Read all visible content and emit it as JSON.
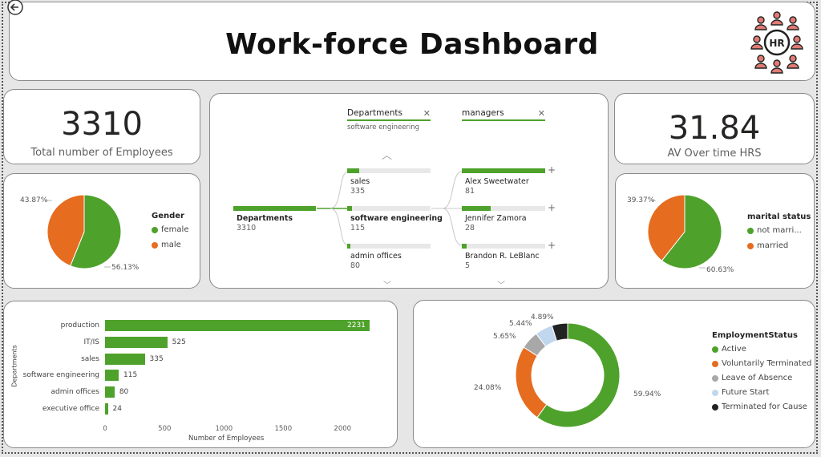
{
  "header": {
    "title": "Work-force Dashboard",
    "back_icon": "back-arrow-icon",
    "logo_text": "HR"
  },
  "kpis": {
    "total_employees": {
      "value": "3310",
      "label": "Total number of Employees"
    },
    "overtime": {
      "value": "31.84",
      "label": "AV Over time HRS"
    }
  },
  "gender": {
    "legend_title": "Gender",
    "items": [
      {
        "label": "female",
        "pct": "56.13%",
        "color": "#4ea22b"
      },
      {
        "label": "male",
        "pct": "43.87%",
        "color": "#e66c1f"
      }
    ]
  },
  "marital": {
    "legend_title": "marital status",
    "items": [
      {
        "label": "not marri...",
        "pct": "60.63%",
        "color": "#4ea22b"
      },
      {
        "label": "married",
        "pct": "39.37%",
        "color": "#e66c1f"
      }
    ]
  },
  "tree": {
    "filters": [
      {
        "label": "Departments",
        "selected": "software engineering"
      },
      {
        "label": "managers",
        "selected": ""
      }
    ],
    "root": {
      "label": "Departments",
      "value": "3310"
    },
    "level1": [
      {
        "label": "sales",
        "value": "335",
        "fill": 0.15
      },
      {
        "label": "software engineering",
        "value": "115",
        "fill": 0.05,
        "selected": true
      },
      {
        "label": "admin offices",
        "value": "80",
        "fill": 0.035
      }
    ],
    "level2": [
      {
        "label": "Alex Sweetwater",
        "value": "81",
        "fill": 1.0
      },
      {
        "label": "Jennifer Zamora",
        "value": "28",
        "fill": 0.35
      },
      {
        "label": "Brandon R. LeBlanc",
        "value": "5",
        "fill": 0.06
      }
    ]
  },
  "dept_chart": {
    "ylabel": "Departments",
    "xlabel": "Number of Employees",
    "ticks": [
      "0",
      "500",
      "1000",
      "1500",
      "2000"
    ],
    "categories": [
      "production",
      "IT/IS",
      "sales",
      "software engineering",
      "admin offices",
      "executive office"
    ],
    "values": [
      2231,
      525,
      335,
      115,
      80,
      24
    ],
    "value_labels": [
      "2231",
      "525",
      "335",
      "115",
      "80",
      "24"
    ]
  },
  "employment": {
    "legend_title": "EmploymentStatus",
    "items": [
      {
        "label": "Active",
        "pct": "59.94%",
        "value": 59.94,
        "color": "#4ea22b"
      },
      {
        "label": "Voluntarily Terminated",
        "pct": "24.08%",
        "value": 24.08,
        "color": "#e66c1f"
      },
      {
        "label": "Leave of Absence",
        "pct": "5.65%",
        "value": 5.65,
        "color": "#a8a8a8"
      },
      {
        "label": "Future Start",
        "pct": "5.44%",
        "value": 5.44,
        "color": "#c0d7ee"
      },
      {
        "label": "Terminated for Cause",
        "pct": "4.89%",
        "value": 4.89,
        "color": "#222222"
      }
    ]
  },
  "chart_data": [
    {
      "type": "pie",
      "title": "Gender",
      "categories": [
        "female",
        "male"
      ],
      "values": [
        56.13,
        43.87
      ]
    },
    {
      "type": "pie",
      "title": "marital status",
      "categories": [
        "not marri...",
        "married"
      ],
      "values": [
        60.63,
        39.37
      ]
    },
    {
      "type": "bar",
      "categories": [
        "production",
        "IT/IS",
        "sales",
        "software engineering",
        "admin offices",
        "executive office"
      ],
      "values": [
        2231,
        525,
        335,
        115,
        80,
        24
      ],
      "xlabel": "Number of Employees",
      "ylabel": "Departments",
      "xlim": [
        0,
        2300
      ]
    },
    {
      "type": "pie",
      "title": "EmploymentStatus",
      "categories": [
        "Active",
        "Voluntarily Terminated",
        "Leave of Absence",
        "Future Start",
        "Terminated for Cause"
      ],
      "values": [
        59.94,
        24.08,
        5.65,
        5.44,
        4.89
      ]
    }
  ]
}
